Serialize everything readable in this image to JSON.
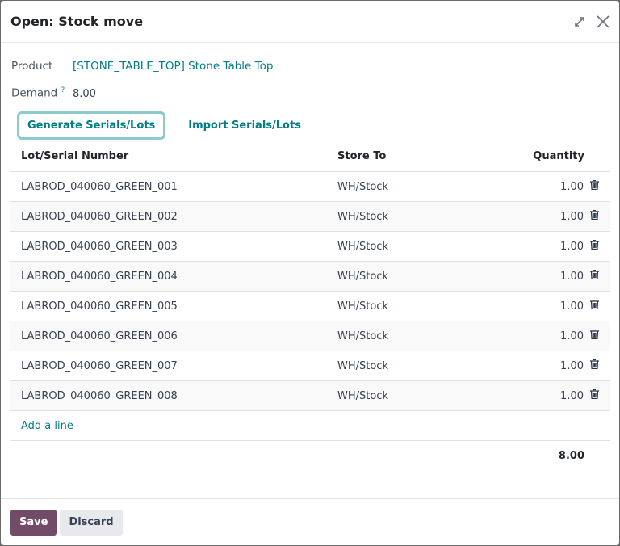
{
  "dialog": {
    "title": "Open: Stock move",
    "expand_icon": "expand-icon",
    "close_icon": "close-icon"
  },
  "form": {
    "product_label": "Product",
    "product_value": "[STONE_TABLE_TOP] Stone Table Top",
    "demand_label": "Demand",
    "demand_help": "?",
    "demand_value": "8.00"
  },
  "actions": {
    "generate": "Generate Serials/Lots",
    "import": "Import Serials/Lots"
  },
  "table": {
    "headers": [
      "Lot/Serial Number",
      "Store To",
      "Quantity"
    ],
    "rows": [
      {
        "lot": "LABROD_040060_GREEN_001",
        "store": "WH/Stock",
        "qty": "1.00"
      },
      {
        "lot": "LABROD_040060_GREEN_002",
        "store": "WH/Stock",
        "qty": "1.00"
      },
      {
        "lot": "LABROD_040060_GREEN_003",
        "store": "WH/Stock",
        "qty": "1.00"
      },
      {
        "lot": "LABROD_040060_GREEN_004",
        "store": "WH/Stock",
        "qty": "1.00"
      },
      {
        "lot": "LABROD_040060_GREEN_005",
        "store": "WH/Stock",
        "qty": "1.00"
      },
      {
        "lot": "LABROD_040060_GREEN_006",
        "store": "WH/Stock",
        "qty": "1.00"
      },
      {
        "lot": "LABROD_040060_GREEN_007",
        "store": "WH/Stock",
        "qty": "1.00"
      },
      {
        "lot": "LABROD_040060_GREEN_008",
        "store": "WH/Stock",
        "qty": "1.00"
      }
    ],
    "add_line": "Add a line",
    "total": "8.00"
  },
  "footer": {
    "save": "Save",
    "discard": "Discard"
  },
  "colors": {
    "accent": "#017e84",
    "primary": "#714b67"
  }
}
